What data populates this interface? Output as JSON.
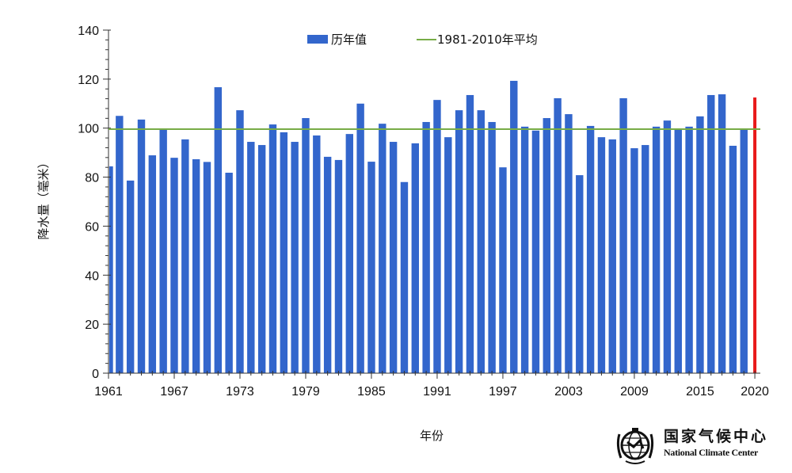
{
  "chart_data": {
    "type": "bar",
    "title": "",
    "xlabel": "年份",
    "ylabel": "降水量（毫米）",
    "ylim": [
      0,
      140
    ],
    "yticks": [
      0,
      20,
      40,
      60,
      80,
      100,
      120,
      140
    ],
    "xtick_labels": [
      "1961",
      "1967",
      "1973",
      "1979",
      "1985",
      "1991",
      "1997",
      "2003",
      "2009",
      "2015",
      "2020"
    ],
    "grid": false,
    "legend_position": "top",
    "legend": [
      "历年值",
      "1981-2010年平均"
    ],
    "categories": [
      1961,
      1962,
      1963,
      1964,
      1965,
      1966,
      1967,
      1968,
      1969,
      1970,
      1971,
      1972,
      1973,
      1974,
      1975,
      1976,
      1977,
      1978,
      1979,
      1980,
      1981,
      1982,
      1983,
      1984,
      1985,
      1986,
      1987,
      1988,
      1989,
      1990,
      1991,
      1992,
      1993,
      1994,
      1995,
      1996,
      1997,
      1998,
      1999,
      2000,
      2001,
      2002,
      2003,
      2004,
      2005,
      2006,
      2007,
      2008,
      2009,
      2010,
      2011,
      2012,
      2013,
      2014,
      2015,
      2016,
      2017,
      2018,
      2019,
      2020
    ],
    "series": [
      {
        "name": "历年值",
        "type": "bar",
        "color": "#3366cc",
        "values": [
          84.4,
          105.0,
          78.6,
          103.5,
          88.9,
          99.9,
          87.9,
          95.4,
          87.3,
          86.2,
          116.7,
          81.8,
          107.3,
          94.4,
          93.1,
          101.5,
          98.3,
          94.4,
          104.1,
          97.0,
          88.3,
          87.0,
          97.6,
          110.0,
          86.3,
          101.8,
          94.4,
          78.0,
          93.8,
          102.5,
          111.5,
          96.3,
          107.3,
          113.5,
          107.3,
          102.5,
          84.0,
          119.3,
          100.6,
          99.0,
          104.1,
          112.2,
          105.7,
          80.8,
          100.9,
          96.3,
          95.4,
          112.2,
          91.8,
          93.1,
          100.6,
          103.1,
          99.3,
          100.6,
          104.8,
          113.5,
          113.8,
          92.8,
          99.9,
          112.5
        ]
      },
      {
        "name": "1981-2010年平均",
        "type": "line",
        "color": "#77ac46",
        "value": 99.6
      }
    ],
    "highlight": {
      "year": 2020,
      "color": "#e8191a"
    }
  },
  "logo": {
    "name_cn": "国家气候中心",
    "name_en": "National Climate Center"
  }
}
